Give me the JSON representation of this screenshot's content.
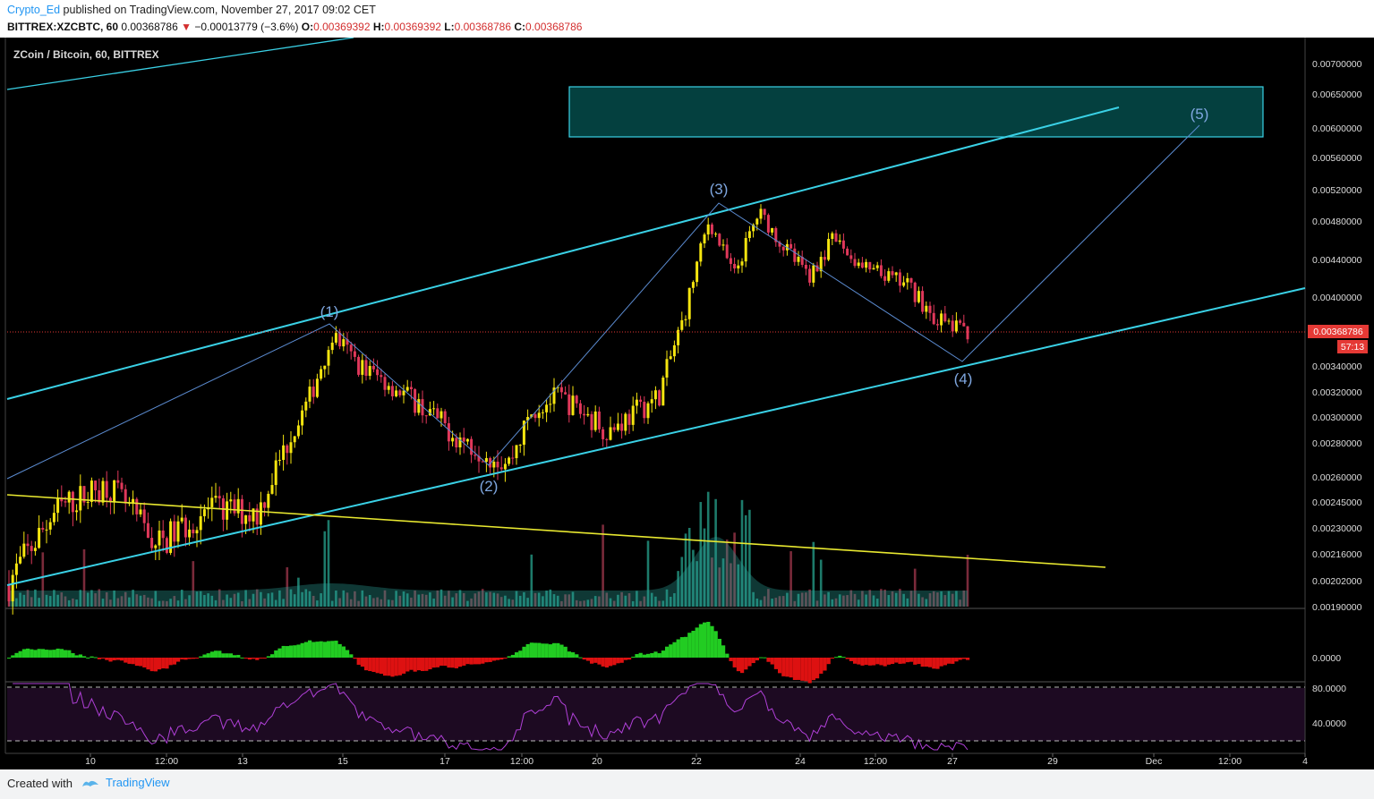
{
  "header": {
    "author": "Crypto_Ed",
    "published_text": "published on TradingView.com, November 27, 2017 09:02 CET",
    "symbol": "BITTREX:XZCBTC, 60",
    "last": "0.00368786",
    "change_arrow": "▼",
    "change": "−0.00013779 (−3.6%)",
    "o_label": "O:",
    "o_value": "0.00369392",
    "h_label": "H:",
    "h_value": "0.00369392",
    "l_label": "L:",
    "l_value": "0.00368786",
    "c_label": "C:",
    "c_value": "0.00368786"
  },
  "chart_title": "ZCoin / Bitcoin, 60, BITTREX",
  "colors": {
    "background": "#000000",
    "up_candle": "#f5e50f",
    "down_candle": "#e0385a",
    "channel": "#3ad1e6",
    "wave": "#5b8bd0",
    "trendline": "#e8e830",
    "target_box_fill": "#04403f",
    "macd_up": "#22cc22",
    "macd_down": "#dd1111",
    "rsi": "#b040d8",
    "price_label_bg": "#e53935"
  },
  "price_axis": {
    "ticks": [
      "0.00700000",
      "0.00650000",
      "0.00600000",
      "0.00560000",
      "0.00520000",
      "0.00480000",
      "0.00440000",
      "0.00400000",
      "0.00340000",
      "0.00320000",
      "0.00300000",
      "0.00280000",
      "0.00260000",
      "0.00245000",
      "0.00230000",
      "0.00216000",
      "0.00202000",
      "0.00190000"
    ],
    "last_price": "0.00368786",
    "countdown": "57:13"
  },
  "macd_axis": {
    "ticks": [
      "0.0000"
    ]
  },
  "rsi_axis": {
    "ticks": [
      "80.0000",
      "40.0000"
    ]
  },
  "time_axis": {
    "ticks": [
      "10",
      "12:00",
      "13",
      "15",
      "17",
      "12:00",
      "20",
      "22",
      "24",
      "12:00",
      "27",
      "29",
      "Dec",
      "12:00",
      "4"
    ]
  },
  "wave_labels": [
    "(1)",
    "(2)",
    "(3)",
    "(4)",
    "(5)"
  ],
  "footer": {
    "created_with": "Created with",
    "brand": "TradingView"
  },
  "chart_data": {
    "type": "candlestick",
    "title": "ZCoin / Bitcoin, 60, BITTREX",
    "symbol": "BITTREX:XZCBTC",
    "interval": "60",
    "x_range": [
      "Nov 8, 2017",
      "Dec 4, 2017"
    ],
    "y_scale": "log",
    "y_range": [
      0.0019,
      0.0072
    ],
    "price_path": [
      {
        "date": "Nov 8",
        "price": 0.002
      },
      {
        "date": "Nov 9",
        "price": 0.0024
      },
      {
        "date": "Nov 10",
        "price": 0.00255
      },
      {
        "date": "Nov 11",
        "price": 0.0022
      },
      {
        "date": "Nov 12",
        "price": 0.0024
      },
      {
        "date": "Nov 13",
        "price": 0.00238
      },
      {
        "date": "Nov 13 12:00",
        "price": 0.00275
      },
      {
        "date": "Nov 14",
        "price": 0.0031
      },
      {
        "date": "Nov 14 12:00",
        "price": 0.00365
      },
      {
        "date": "Nov 15",
        "price": 0.0034
      },
      {
        "date": "Nov 16",
        "price": 0.00315
      },
      {
        "date": "Nov 17",
        "price": 0.00285
      },
      {
        "date": "Nov 18",
        "price": 0.00268
      },
      {
        "date": "Nov 18 12:00",
        "price": 0.00305
      },
      {
        "date": "Nov 19",
        "price": 0.00315
      },
      {
        "date": "Nov 20",
        "price": 0.0029
      },
      {
        "date": "Nov 21",
        "price": 0.00315
      },
      {
        "date": "Nov 21 12:00",
        "price": 0.0038
      },
      {
        "date": "Nov 22",
        "price": 0.0048
      },
      {
        "date": "Nov 22 12:00",
        "price": 0.0042
      },
      {
        "date": "Nov 23",
        "price": 0.0049
      },
      {
        "date": "Nov 23 12:00",
        "price": 0.0045
      },
      {
        "date": "Nov 24",
        "price": 0.0042
      },
      {
        "date": "Nov 24 12:00",
        "price": 0.0046
      },
      {
        "date": "Nov 25",
        "price": 0.0043
      },
      {
        "date": "Nov 26",
        "price": 0.0041
      },
      {
        "date": "Nov 26 12:00",
        "price": 0.0038
      },
      {
        "date": "Nov 27",
        "price": 0.00369
      }
    ],
    "elliott_waves": [
      {
        "label": "(1)",
        "date": "Nov 14 12:00",
        "price": 0.00368
      },
      {
        "label": "(2)",
        "date": "Nov 18",
        "price": 0.00268
      },
      {
        "label": "(3)",
        "date": "Nov 22 12:00",
        "price": 0.005
      },
      {
        "label": "(4)",
        "date": "Nov 27",
        "price": 0.00344
      },
      {
        "label": "(5)",
        "date": "Dec 1",
        "price": 0.006
      }
    ],
    "target_zone": {
      "from": "Nov 19",
      "to": "Dec 2",
      "low": 0.0059,
      "high": 0.0066
    },
    "indicators": [
      "Volume",
      "MACD histogram",
      "RSI"
    ],
    "rsi_levels": [
      80,
      40
    ],
    "last_price": 0.00368786
  }
}
